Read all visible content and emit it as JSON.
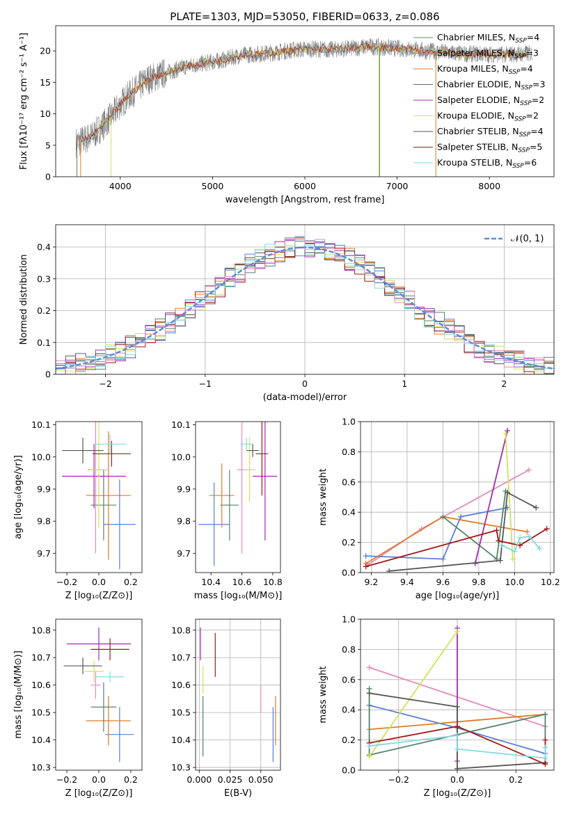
{
  "figure_title": "PLATE=1303, MJD=53050, FIBERID=0633, z=0.086",
  "colors": {
    "chabrier_miles": "#5b7fd6",
    "salpeter_miles": "#e07b2a",
    "kroupa_miles": "#55836a",
    "chabrier_elodie": "#56697a",
    "salpeter_elodie": "#9b2fae",
    "kroupa_elodie": "#d4e157",
    "chabrier_stelib": "#555555",
    "salpeter_stelib": "#a01818",
    "kroupa_stelib": "#7fdbe0",
    "pink": "#e58bbd",
    "gaussian": "#5b8bd6"
  },
  "chart_data": [
    {
      "id": "spectrum",
      "type": "line",
      "xlabel": "wavelength [Angstrom, rest frame]",
      "ylabel": "Flux [fλ10⁻¹⁷ erg cm⁻² s⁻¹ A⁻¹]",
      "xlim": [
        3300,
        8700
      ],
      "ylim": [
        0,
        24
      ],
      "xticks": [
        4000,
        5000,
        6000,
        7000,
        8000
      ],
      "yticks": [
        0,
        5,
        10,
        15,
        20
      ],
      "legend_position": "top-right",
      "legend": [
        {
          "label": "Chabrier MILES, N",
          "sub": "SSP",
          "suffix": "=4",
          "color_key": "chabrier_miles"
        },
        {
          "label": "Salpeter MILES, N",
          "sub": "SSP",
          "suffix": "=3",
          "color_key": "salpeter_miles"
        },
        {
          "label": "Kroupa MILES, N",
          "sub": "SSP",
          "suffix": "=4",
          "color_key": "salpeter_miles"
        },
        {
          "label": "Chabrier ELODIE, N",
          "sub": "SSP",
          "suffix": "=3",
          "color_key": "chabrier_elodie"
        },
        {
          "label": "Salpeter ELODIE, N",
          "sub": "SSP",
          "suffix": "=2",
          "color_key": "salpeter_elodie"
        },
        {
          "label": "Kroupa ELODIE, N",
          "sub": "SSP",
          "suffix": "=2",
          "color_key": "kroupa_elodie"
        },
        {
          "label": "Chabrier STELIB, N",
          "sub": "SSP",
          "suffix": "=4",
          "color_key": "chabrier_stelib"
        },
        {
          "label": "Salpeter STELIB, N",
          "sub": "SSP",
          "suffix": "=5",
          "color_key": "salpeter_stelib"
        },
        {
          "label": "Kroupa STELIB, N",
          "sub": "SSP",
          "suffix": "=6",
          "color_key": "kroupa_stelib"
        }
      ],
      "continuum": [
        [
          3550,
          5.5
        ],
        [
          3700,
          6.5
        ],
        [
          3900,
          9.5
        ],
        [
          4000,
          11.5
        ],
        [
          4100,
          13
        ],
        [
          4300,
          15.5
        ],
        [
          4500,
          16.5
        ],
        [
          4700,
          17.5
        ],
        [
          4900,
          18
        ],
        [
          5100,
          18.5
        ],
        [
          5300,
          19.3
        ],
        [
          5500,
          19.5
        ],
        [
          5700,
          19.8
        ],
        [
          5900,
          20.2
        ],
        [
          6100,
          20.3
        ],
        [
          6300,
          20.2
        ],
        [
          6500,
          20.4
        ],
        [
          6700,
          20.7
        ],
        [
          6900,
          20.5
        ],
        [
          7100,
          20.3
        ],
        [
          7300,
          20
        ],
        [
          7500,
          19.8
        ],
        [
          7700,
          19.5
        ],
        [
          7900,
          19.5
        ],
        [
          8100,
          19.4
        ],
        [
          8300,
          19.5
        ],
        [
          8450,
          19.6
        ]
      ],
      "drop_lines": [
        {
          "x": 3530,
          "color_key": "kroupa_miles"
        },
        {
          "x": 3570,
          "color_key": "salpeter_miles"
        },
        {
          "x": 3900,
          "color_key": "kroupa_elodie"
        },
        {
          "x": 6800,
          "color_key": "kroupa_elodie"
        },
        {
          "x": 6810,
          "color_key": "kroupa_miles"
        },
        {
          "x": 7420,
          "color_key": "salpeter_miles"
        }
      ]
    },
    {
      "id": "residuals",
      "type": "histogram",
      "xlabel": "(data-model)/error",
      "ylabel": "Normed distribution",
      "xlim": [
        -2.5,
        2.5
      ],
      "ylim": [
        0,
        0.47
      ],
      "xticks": [
        -2,
        -1,
        0,
        1,
        2
      ],
      "yticks": [
        0.0,
        0.1,
        0.2,
        0.3,
        0.4
      ],
      "grid": true,
      "legend_position": "top-right",
      "legend_label": "𝒩(0, 1)",
      "bin_width": 0.1,
      "series_color_keys": [
        "chabrier_miles",
        "salpeter_miles",
        "kroupa_miles",
        "chabrier_elodie",
        "salpeter_elodie",
        "kroupa_elodie",
        "chabrier_stelib",
        "salpeter_stelib",
        "kroupa_stelib",
        "pink"
      ]
    },
    {
      "id": "age_vs_Z",
      "type": "scatter",
      "xlabel": "Z [log₁₀(Z/Z⊙)]",
      "ylabel": "age  [log₁₀(age/yr)]",
      "xlim": [
        -0.27,
        0.27
      ],
      "ylim": [
        9.64,
        10.11
      ],
      "xticks": [
        -0.2,
        0.0,
        0.2
      ],
      "yticks": [
        9.7,
        9.8,
        9.9,
        10.0,
        10.1
      ],
      "points": [
        {
          "x": 0.13,
          "y": 9.79,
          "xerr": 0.1,
          "yerr": 0.14,
          "ck": "chabrier_miles"
        },
        {
          "x": 0.06,
          "y": 9.88,
          "xerr": 0.14,
          "yerr": 0.2,
          "ck": "salpeter_miles"
        },
        {
          "x": 0.03,
          "y": 9.85,
          "xerr": 0.08,
          "yerr": 0.11,
          "ck": "kroupa_miles"
        },
        {
          "x": -0.03,
          "y": 9.94,
          "xerr": 0.2,
          "yerr": 0.1,
          "ck": "salpeter_elodie"
        },
        {
          "x": -0.02,
          "y": 9.96,
          "xerr": 0.05,
          "yerr": 0.26,
          "ck": "pink"
        },
        {
          "x": 0.0,
          "y": 9.96,
          "xerr": 0.06,
          "yerr": 0.18,
          "ck": "kroupa_elodie"
        },
        {
          "x": 0.08,
          "y": 10.01,
          "xerr": 0.12,
          "yerr": 0.04,
          "ck": "salpeter_stelib"
        },
        {
          "x": 0.07,
          "y": 10.04,
          "xerr": 0.1,
          "yerr": 0.03,
          "ck": "kroupa_stelib"
        },
        {
          "x": -0.1,
          "y": 10.02,
          "xerr": 0.13,
          "yerr": 0.04,
          "ck": "chabrier_stelib"
        }
      ]
    },
    {
      "id": "age_vs_mass",
      "type": "scatter",
      "xlabel": "mass [log₁₀(M/M⊙)]",
      "ylabel": "",
      "xlim": [
        10.3,
        10.85
      ],
      "ylim": [
        9.64,
        10.11
      ],
      "xticks": [
        10.4,
        10.6,
        10.8
      ],
      "yticks": [
        9.7,
        9.8,
        9.9,
        10.0,
        10.1
      ],
      "points": [
        {
          "x": 10.42,
          "y": 9.79,
          "xerr": 0.1,
          "yerr": 0.13,
          "ck": "chabrier_miles"
        },
        {
          "x": 10.47,
          "y": 9.88,
          "xerr": 0.08,
          "yerr": 0.1,
          "ck": "salpeter_miles"
        },
        {
          "x": 10.52,
          "y": 9.85,
          "xerr": 0.06,
          "yerr": 0.11,
          "ck": "kroupa_miles"
        },
        {
          "x": 10.75,
          "y": 9.94,
          "xerr": 0.08,
          "yerr": 0.2,
          "ck": "salpeter_elodie"
        },
        {
          "x": 10.6,
          "y": 9.96,
          "xerr": 0.03,
          "yerr": 0.26,
          "ck": "pink"
        },
        {
          "x": 10.65,
          "y": 9.96,
          "xerr": 0.04,
          "yerr": 0.1,
          "ck": "kroupa_elodie"
        },
        {
          "x": 10.73,
          "y": 10.01,
          "xerr": 0.04,
          "yerr": 0.13,
          "ck": "salpeter_stelib"
        },
        {
          "x": 10.63,
          "y": 10.04,
          "xerr": 0.04,
          "yerr": 0.02,
          "ck": "kroupa_stelib"
        },
        {
          "x": 10.67,
          "y": 10.02,
          "xerr": 0.04,
          "yerr": 0.02,
          "ck": "chabrier_stelib"
        }
      ]
    },
    {
      "id": "weight_vs_age",
      "type": "line",
      "xlabel": "age  [log₁₀(age/yr)]",
      "ylabel": "mass weight",
      "xlim": [
        9.14,
        10.22
      ],
      "ylim": [
        0,
        1
      ],
      "xticks": [
        9.2,
        9.4,
        9.6,
        9.8,
        10.0,
        10.2
      ],
      "yticks": [
        0.0,
        0.2,
        0.4,
        0.6,
        0.8,
        1.0
      ],
      "grid": true,
      "series": [
        {
          "ck": "pink",
          "points": [
            [
              9.18,
              0.05
            ],
            [
              9.48,
              0.29
            ],
            [
              10.08,
              0.68
            ]
          ]
        },
        {
          "ck": "chabrier_miles",
          "points": [
            [
              9.17,
              0.11
            ],
            [
              9.6,
              0.09
            ],
            [
              9.7,
              0.37
            ],
            [
              9.96,
              0.43
            ]
          ]
        },
        {
          "ck": "salpeter_miles",
          "points": [
            [
              9.17,
              0.06
            ],
            [
              9.6,
              0.37
            ],
            [
              10.07,
              0.27
            ]
          ]
        },
        {
          "ck": "kroupa_miles",
          "points": [
            [
              9.6,
              0.37
            ],
            [
              9.9,
              0.09
            ],
            [
              9.95,
              0.54
            ]
          ]
        },
        {
          "ck": "salpeter_elodie",
          "points": [
            [
              9.78,
              0.06
            ],
            [
              9.96,
              0.94
            ]
          ]
        },
        {
          "ck": "kroupa_elodie",
          "points": [
            [
              9.95,
              0.92
            ],
            [
              9.99,
              0.09
            ]
          ]
        },
        {
          "ck": "chabrier_stelib",
          "points": [
            [
              9.3,
              0.01
            ],
            [
              9.92,
              0.08
            ],
            [
              9.96,
              0.53
            ],
            [
              10.12,
              0.43
            ]
          ]
        },
        {
          "ck": "salpeter_stelib",
          "points": [
            [
              9.17,
              0.04
            ],
            [
              9.9,
              0.28
            ],
            [
              9.91,
              0.21
            ],
            [
              10.03,
              0.18
            ],
            [
              10.18,
              0.29
            ]
          ]
        },
        {
          "ck": "kroupa_stelib",
          "points": [
            [
              9.93,
              0.18
            ],
            [
              10.0,
              0.14
            ],
            [
              10.03,
              0.23
            ],
            [
              10.08,
              0.24
            ],
            [
              10.14,
              0.16
            ]
          ]
        }
      ]
    },
    {
      "id": "mass_vs_Z",
      "type": "scatter",
      "xlabel": "Z [log₁₀(Z/Z⊙)]",
      "ylabel": "mass [log₁₀(M/M⊙)]",
      "xlim": [
        -0.27,
        0.27
      ],
      "ylim": [
        10.29,
        10.84
      ],
      "xticks": [
        -0.2,
        0.0,
        0.2
      ],
      "yticks": [
        10.3,
        10.4,
        10.5,
        10.6,
        10.7,
        10.8
      ],
      "points": [
        {
          "x": 0.13,
          "y": 10.42,
          "xerr": 0.09,
          "yerr": 0.1,
          "ck": "chabrier_miles"
        },
        {
          "x": 0.06,
          "y": 10.47,
          "xerr": 0.14,
          "yerr": 0.09,
          "ck": "salpeter_miles"
        },
        {
          "x": 0.03,
          "y": 10.52,
          "xerr": 0.08,
          "yerr": 0.09,
          "ck": "kroupa_miles"
        },
        {
          "x": 0.0,
          "y": 10.75,
          "xerr": 0.2,
          "yerr": 0.06,
          "ck": "salpeter_elodie"
        },
        {
          "x": -0.02,
          "y": 10.6,
          "xerr": 0.03,
          "yerr": 0.05,
          "ck": "pink"
        },
        {
          "x": -0.03,
          "y": 10.65,
          "xerr": 0.06,
          "yerr": 0.04,
          "ck": "kroupa_elodie"
        },
        {
          "x": 0.07,
          "y": 10.73,
          "xerr": 0.12,
          "yerr": 0.04,
          "ck": "salpeter_stelib"
        },
        {
          "x": 0.07,
          "y": 10.63,
          "xerr": 0.09,
          "yerr": 0.02,
          "ck": "kroupa_stelib"
        },
        {
          "x": -0.1,
          "y": 10.67,
          "xerr": 0.12,
          "yerr": 0.03,
          "ck": "chabrier_stelib"
        }
      ]
    },
    {
      "id": "mass_vs_EBV",
      "type": "scatter",
      "xlabel": "E(B-V)",
      "ylabel": "",
      "xlim": [
        -0.003,
        0.066
      ],
      "ylim": [
        10.29,
        10.84
      ],
      "xticks": [
        0.0,
        0.025,
        0.05
      ],
      "xtick_labels": [
        "0.000",
        "0.025",
        "0.050"
      ],
      "yticks": [
        10.3,
        10.4,
        10.5,
        10.6,
        10.7,
        10.8
      ],
      "grid": true,
      "points": [
        {
          "x": 0.06,
          "y": 10.42,
          "xerr": 0.0,
          "yerr": 0.1,
          "ck": "chabrier_miles"
        },
        {
          "x": 0.062,
          "y": 10.47,
          "xerr": 0.0,
          "yerr": 0.09,
          "ck": "salpeter_miles"
        },
        {
          "x": 0.003,
          "y": 10.45,
          "xerr": 0.0,
          "yerr": 0.11,
          "ck": "kroupa_miles"
        },
        {
          "x": 0.001,
          "y": 10.75,
          "xerr": 0.0,
          "yerr": 0.06,
          "ck": "salpeter_elodie"
        },
        {
          "x": 0.05,
          "y": 10.55,
          "xerr": 0.0,
          "yerr": 0.05,
          "ck": "pink"
        },
        {
          "x": 0.003,
          "y": 10.62,
          "xerr": 0.0,
          "yerr": 0.05,
          "ck": "kroupa_elodie"
        },
        {
          "x": 0.013,
          "y": 10.71,
          "xerr": 0.0,
          "yerr": 0.08,
          "ck": "salpeter_stelib"
        }
      ]
    },
    {
      "id": "weight_vs_Z",
      "type": "line",
      "xlabel": "Z [log₁₀(Z/Z⊙)]",
      "ylabel": "mass weight",
      "xlim": [
        -0.33,
        0.33
      ],
      "ylim": [
        0,
        1
      ],
      "xticks": [
        -0.2,
        0.0,
        0.2
      ],
      "yticks": [
        0.0,
        0.2,
        0.4,
        0.6,
        0.8,
        1.0
      ],
      "grid": true,
      "series": [
        {
          "ck": "pink",
          "points": [
            [
              -0.3,
              0.68
            ],
            [
              0.3,
              0.29
            ]
          ]
        },
        {
          "ck": "chabrier_miles",
          "points": [
            [
              -0.3,
              0.43
            ],
            [
              0.0,
              0.28
            ],
            [
              0.3,
              0.11
            ]
          ]
        },
        {
          "ck": "salpeter_miles",
          "points": [
            [
              -0.3,
              0.27
            ],
            [
              0.3,
              0.37
            ]
          ]
        },
        {
          "ck": "kroupa_miles",
          "points": [
            [
              -0.3,
              0.54
            ],
            [
              -0.3,
              0.1
            ],
            [
              0.3,
              0.37
            ],
            [
              0.3,
              0.05
            ]
          ]
        },
        {
          "ck": "salpeter_elodie",
          "points": [
            [
              0.0,
              0.94
            ],
            [
              0.0,
              0.06
            ]
          ]
        },
        {
          "ck": "kroupa_elodie",
          "points": [
            [
              -0.3,
              0.09
            ],
            [
              0.0,
              0.92
            ]
          ]
        },
        {
          "ck": "chabrier_stelib",
          "points": [
            [
              -0.3,
              0.51
            ],
            [
              0.0,
              0.42
            ],
            [
              0.0,
              0.01
            ],
            [
              0.3,
              0.05
            ]
          ]
        },
        {
          "ck": "salpeter_stelib",
          "points": [
            [
              -0.3,
              0.18
            ],
            [
              0.0,
              0.29
            ],
            [
              0.3,
              0.04
            ],
            [
              0.3,
              0.2
            ]
          ]
        },
        {
          "ck": "kroupa_stelib",
          "points": [
            [
              -0.3,
              0.16
            ],
            [
              0.0,
              0.23
            ],
            [
              0.0,
              0.14
            ],
            [
              0.3,
              0.08
            ],
            [
              0.3,
              0.15
            ]
          ]
        }
      ]
    }
  ]
}
